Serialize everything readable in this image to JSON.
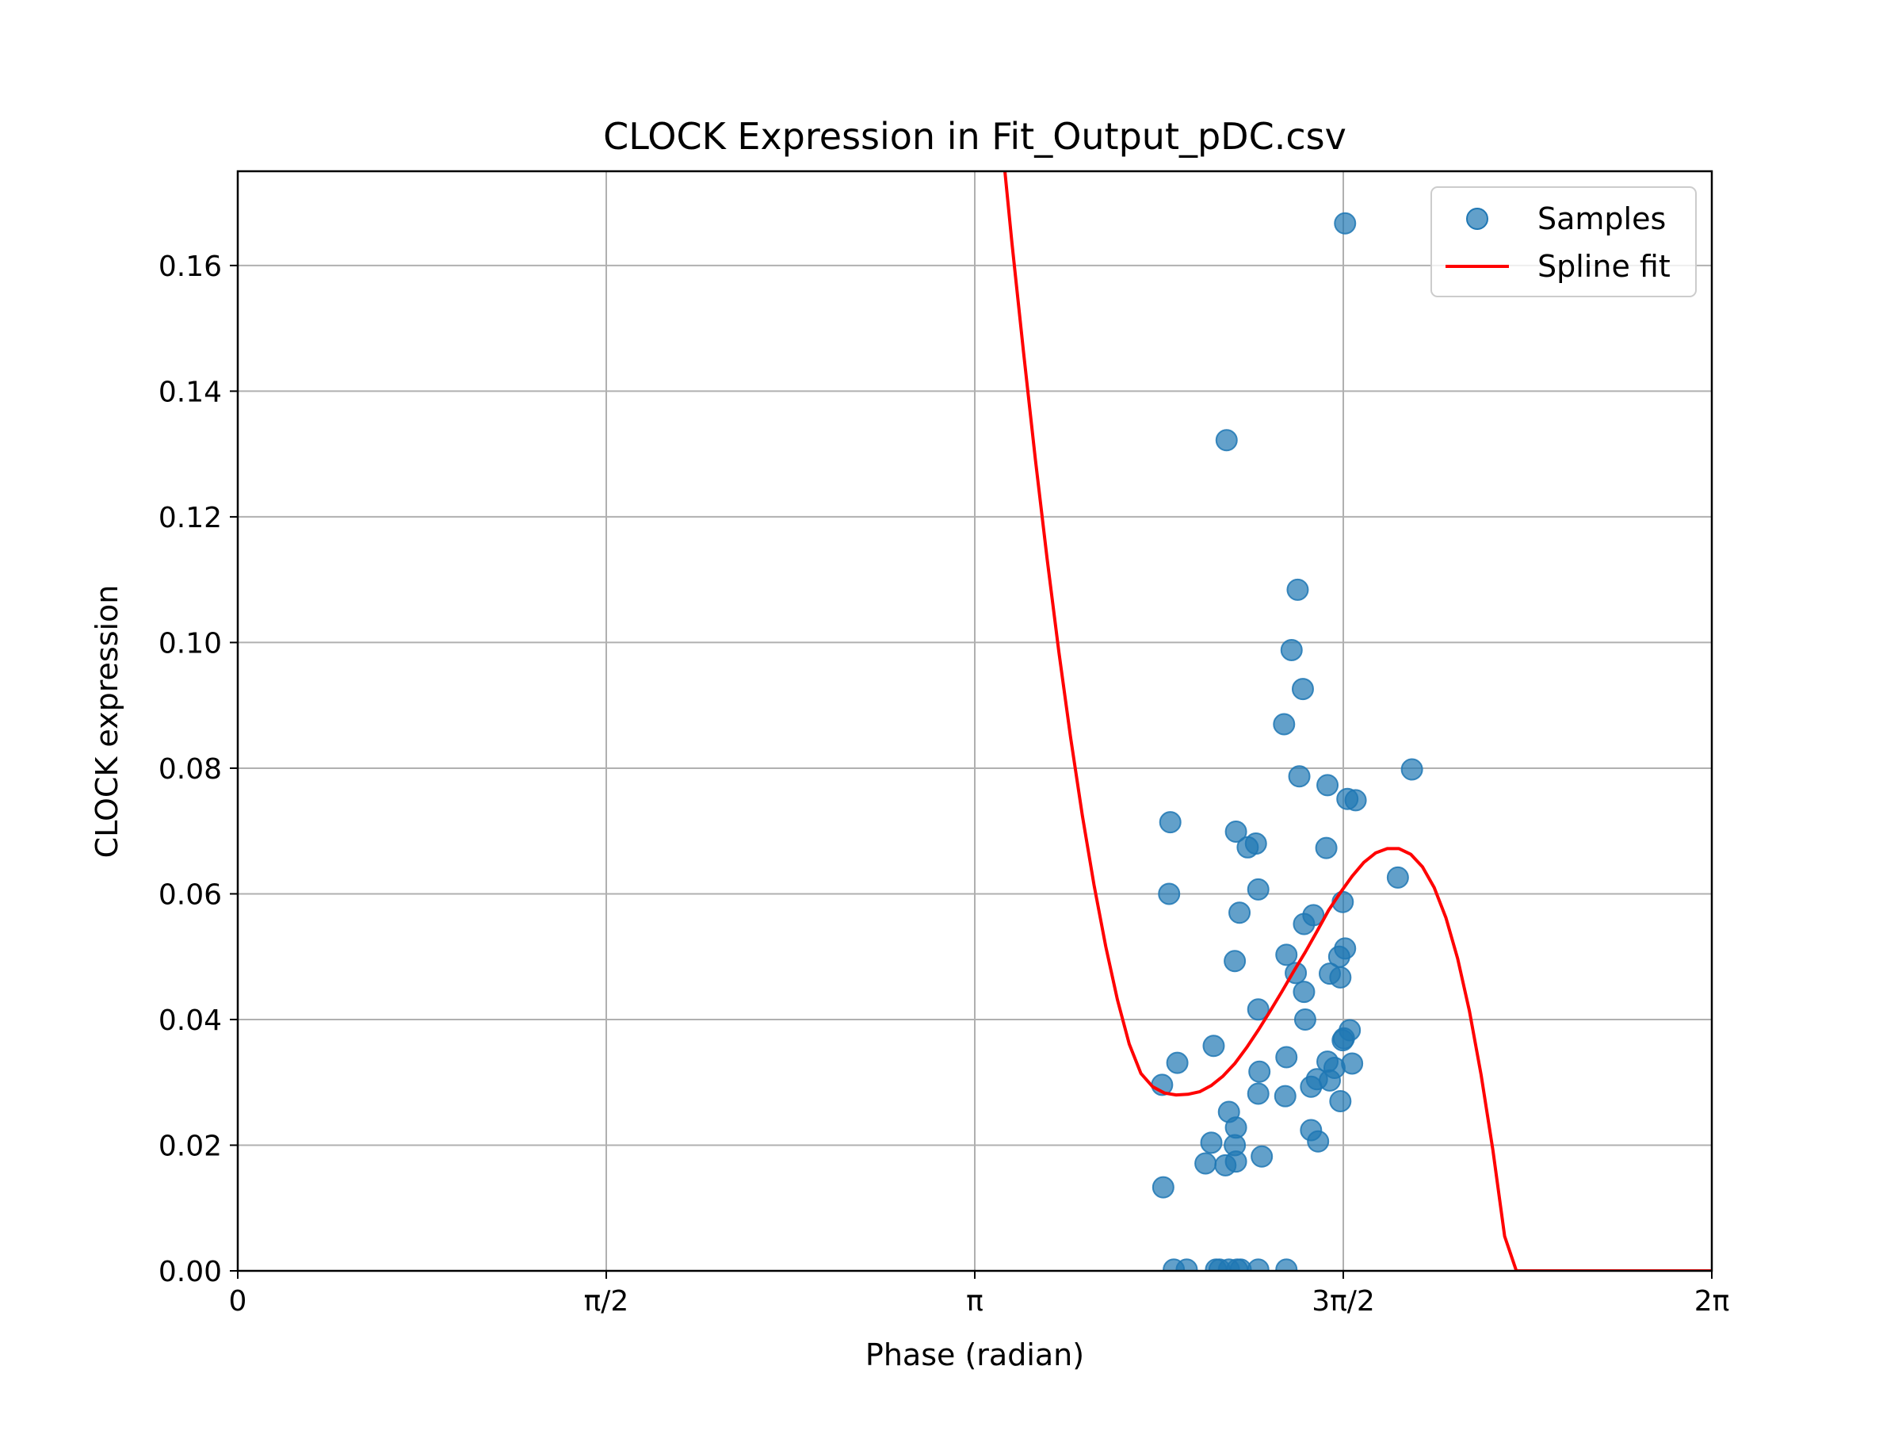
{
  "chart_data": {
    "type": "scatter",
    "title": "CLOCK Expression in Fit_Output_pDC.csv",
    "xlabel": "Phase (radian)",
    "ylabel": "CLOCK expression",
    "xlim": [
      0,
      6.283185
    ],
    "ylim": [
      0,
      0.175
    ],
    "grid": true,
    "legend_position": "top-right",
    "xticks": [
      {
        "value": 0,
        "label": "0"
      },
      {
        "value": 1.570796,
        "label": "π/2"
      },
      {
        "value": 3.141593,
        "label": "π"
      },
      {
        "value": 4.712389,
        "label": "3π/2"
      },
      {
        "value": 6.283185,
        "label": "2π"
      }
    ],
    "yticks": [
      {
        "value": 0.0,
        "label": "0.00"
      },
      {
        "value": 0.02,
        "label": "0.02"
      },
      {
        "value": 0.04,
        "label": "0.04"
      },
      {
        "value": 0.06,
        "label": "0.06"
      },
      {
        "value": 0.08,
        "label": "0.08"
      },
      {
        "value": 0.1,
        "label": "0.10"
      },
      {
        "value": 0.12,
        "label": "0.12"
      },
      {
        "value": 0.14,
        "label": "0.14"
      },
      {
        "value": 0.16,
        "label": "0.16"
      }
    ],
    "series": [
      {
        "name": "Samples",
        "kind": "scatter",
        "color": "#1f77b4",
        "points": [
          [
            4.72,
            0.1667
          ],
          [
            4.215,
            0.1322
          ],
          [
            4.518,
            0.1084
          ],
          [
            4.492,
            0.0988
          ],
          [
            4.54,
            0.0926
          ],
          [
            4.46,
            0.087
          ],
          [
            4.525,
            0.0787
          ],
          [
            4.645,
            0.0773
          ],
          [
            5.005,
            0.0798
          ],
          [
            4.73,
            0.0751
          ],
          [
            4.765,
            0.0749
          ],
          [
            3.975,
            0.0714
          ],
          [
            4.255,
            0.0699
          ],
          [
            4.34,
            0.068
          ],
          [
            4.305,
            0.0674
          ],
          [
            4.64,
            0.0673
          ],
          [
            4.945,
            0.0626
          ],
          [
            3.97,
            0.06
          ],
          [
            4.35,
            0.0607
          ],
          [
            4.27,
            0.057
          ],
          [
            4.71,
            0.0587
          ],
          [
            4.585,
            0.0566
          ],
          [
            4.545,
            0.0552
          ],
          [
            4.47,
            0.0503
          ],
          [
            4.72,
            0.0513
          ],
          [
            4.695,
            0.05
          ],
          [
            4.25,
            0.0493
          ],
          [
            4.51,
            0.0474
          ],
          [
            4.655,
            0.0473
          ],
          [
            4.7,
            0.0467
          ],
          [
            4.545,
            0.0444
          ],
          [
            4.35,
            0.0416
          ],
          [
            4.55,
            0.04
          ],
          [
            4.74,
            0.0383
          ],
          [
            4.715,
            0.037
          ],
          [
            4.71,
            0.0367
          ],
          [
            4.16,
            0.0358
          ],
          [
            4.005,
            0.0331
          ],
          [
            4.47,
            0.034
          ],
          [
            4.645,
            0.0333
          ],
          [
            4.675,
            0.0323
          ],
          [
            4.75,
            0.033
          ],
          [
            4.355,
            0.0317
          ],
          [
            4.6,
            0.0305
          ],
          [
            4.655,
            0.0303
          ],
          [
            4.575,
            0.0293
          ],
          [
            3.94,
            0.0296
          ],
          [
            4.35,
            0.0282
          ],
          [
            4.465,
            0.0278
          ],
          [
            4.7,
            0.027
          ],
          [
            4.225,
            0.0253
          ],
          [
            4.255,
            0.0228
          ],
          [
            4.575,
            0.0224
          ],
          [
            4.15,
            0.0204
          ],
          [
            4.25,
            0.02
          ],
          [
            4.605,
            0.0206
          ],
          [
            4.125,
            0.0171
          ],
          [
            4.21,
            0.0168
          ],
          [
            4.255,
            0.0174
          ],
          [
            4.365,
            0.0182
          ],
          [
            3.945,
            0.0133
          ],
          [
            3.99,
            0.0002
          ],
          [
            4.045,
            0.0002
          ],
          [
            4.17,
            0.0002
          ],
          [
            4.185,
            0.0002
          ],
          [
            4.225,
            0.0002
          ],
          [
            4.26,
            0.0002
          ],
          [
            4.275,
            0.0002
          ],
          [
            4.35,
            0.0002
          ],
          [
            4.47,
            0.0002
          ]
        ]
      },
      {
        "name": "Spline fit",
        "kind": "line",
        "color": "#ff0000",
        "points": [
          [
            3.27,
            0.175
          ],
          [
            3.3,
            0.1636
          ],
          [
            3.35,
            0.146
          ],
          [
            3.4,
            0.1291
          ],
          [
            3.45,
            0.1133
          ],
          [
            3.5,
            0.0985
          ],
          [
            3.55,
            0.0849
          ],
          [
            3.6,
            0.0725
          ],
          [
            3.65,
            0.0614
          ],
          [
            3.7,
            0.0516
          ],
          [
            3.75,
            0.0431
          ],
          [
            3.8,
            0.0361
          ],
          [
            3.85,
            0.0314
          ],
          [
            3.9,
            0.0293
          ],
          [
            3.95,
            0.0283
          ],
          [
            4.0,
            0.028
          ],
          [
            4.05,
            0.0281
          ],
          [
            4.1,
            0.0285
          ],
          [
            4.15,
            0.0295
          ],
          [
            4.2,
            0.031
          ],
          [
            4.25,
            0.033
          ],
          [
            4.3,
            0.0355
          ],
          [
            4.35,
            0.0383
          ],
          [
            4.4,
            0.0413
          ],
          [
            4.45,
            0.0444
          ],
          [
            4.5,
            0.0476
          ],
          [
            4.55,
            0.0507
          ],
          [
            4.6,
            0.054
          ],
          [
            4.65,
            0.0574
          ],
          [
            4.7,
            0.0602
          ],
          [
            4.75,
            0.0628
          ],
          [
            4.8,
            0.065
          ],
          [
            4.85,
            0.0665
          ],
          [
            4.9,
            0.0672
          ],
          [
            4.95,
            0.0672
          ],
          [
            5.0,
            0.0663
          ],
          [
            5.05,
            0.0643
          ],
          [
            5.1,
            0.061
          ],
          [
            5.15,
            0.0562
          ],
          [
            5.2,
            0.0497
          ],
          [
            5.25,
            0.0414
          ],
          [
            5.3,
            0.0312
          ],
          [
            5.35,
            0.0192
          ],
          [
            5.4,
            0.0055
          ],
          [
            5.45,
            0.0
          ],
          [
            5.5,
            0.0
          ],
          [
            6.283185,
            0.0
          ]
        ]
      }
    ]
  }
}
